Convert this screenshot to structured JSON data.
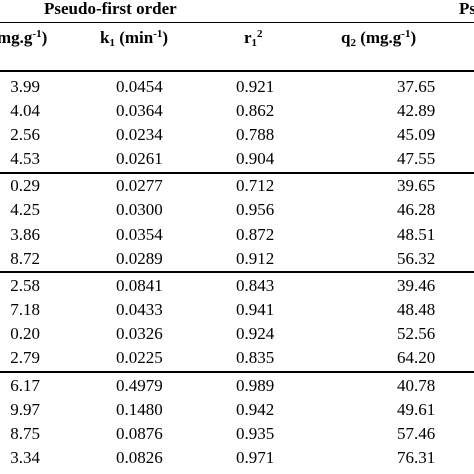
{
  "groups": {
    "first": "Pseudo-first order",
    "second": "Ps"
  },
  "columns": {
    "qe": {
      "text": "mg.g",
      "sup": "-1",
      "close": ")"
    },
    "k1": {
      "text": "k",
      "sub": "1",
      "mid": " (min",
      "sup": "-1",
      "close": ")"
    },
    "r1": {
      "text": "r",
      "sub": "1",
      "sup": "2"
    },
    "q2": {
      "text": "q",
      "sub": "2",
      "mid": " (mg.g",
      "sup": "-1",
      "close": ")"
    }
  },
  "rows": [
    [
      "3.99",
      "0.0454",
      "0.921",
      "37.65"
    ],
    [
      "4.04",
      "0.0364",
      "0.862",
      "42.89"
    ],
    [
      "2.56",
      "0.0234",
      "0.788",
      "45.09"
    ],
    [
      "4.53",
      "0.0261",
      "0.904",
      "47.55"
    ],
    [
      "0.29",
      "0.0277",
      "0.712",
      "39.65"
    ],
    [
      "4.25",
      "0.0300",
      "0.956",
      "46.28"
    ],
    [
      "3.86",
      "0.0354",
      "0.872",
      "48.51"
    ],
    [
      "8.72",
      "0.0289",
      "0.912",
      "56.32"
    ],
    [
      "2.58",
      "0.0841",
      "0.843",
      "39.46"
    ],
    [
      "7.18",
      "0.0433",
      "0.941",
      "48.48"
    ],
    [
      "0.20",
      "0.0326",
      "0.924",
      "52.56"
    ],
    [
      "2.79",
      "0.0225",
      "0.835",
      "64.20"
    ],
    [
      "6.17",
      "0.4979",
      "0.989",
      "40.78"
    ],
    [
      "9.97",
      "0.1480",
      "0.942",
      "49.61"
    ],
    [
      "8.75",
      "0.0876",
      "0.935",
      "57.46"
    ],
    [
      "3.34",
      "0.0826",
      "0.971",
      "76.31"
    ]
  ]
}
